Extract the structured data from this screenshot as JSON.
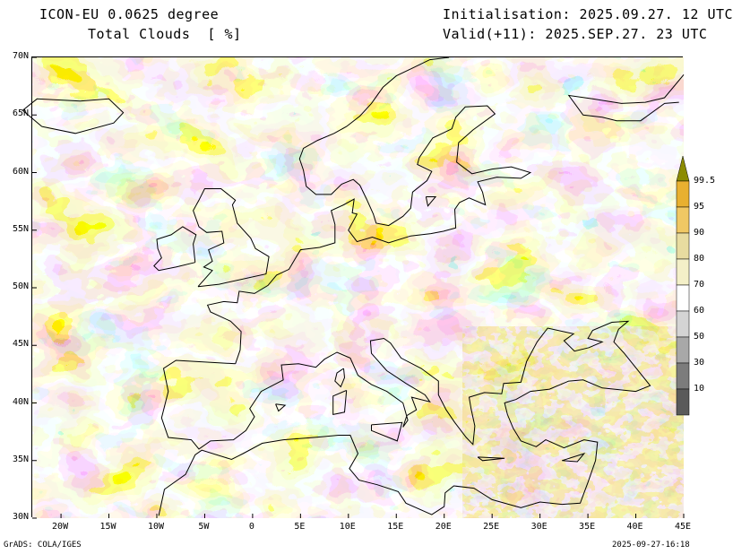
{
  "header": {
    "model": "ICON-EU 0.0625 degree",
    "variable": "Total Clouds  [ %]",
    "init": "Initialisation: 2025.09.27. 12 UTC",
    "valid": "Valid(+11): 2025.SEP.27. 23 UTC"
  },
  "map": {
    "lat_labels": [
      "70N",
      "65N",
      "60N",
      "55N",
      "50N",
      "45N",
      "40N",
      "35N",
      "30N"
    ],
    "lon_labels": [
      "20W",
      "15W",
      "10W",
      "5W",
      "0",
      "5E",
      "10E",
      "15E",
      "20E",
      "25E",
      "30E",
      "35E",
      "40E",
      "45E"
    ],
    "extent": {
      "lon_min": -23,
      "lon_max": 45,
      "lat_min": 30,
      "lat_max": 70
    }
  },
  "colorbar": {
    "labels": [
      "99.5",
      "95",
      "90",
      "80",
      "70",
      "60",
      "50",
      "30",
      "10"
    ],
    "colors": [
      "#8c8c00",
      "#e8b030",
      "#f0c864",
      "#e8dca0",
      "#f4f0c8",
      "#ffffff",
      "#d4d4d4",
      "#a8a8a8",
      "#7c7c7c",
      "#5a5a5a"
    ]
  },
  "footer": {
    "left": "GrADS: COLA/IGES",
    "right": "2025-09-27-16:18"
  }
}
